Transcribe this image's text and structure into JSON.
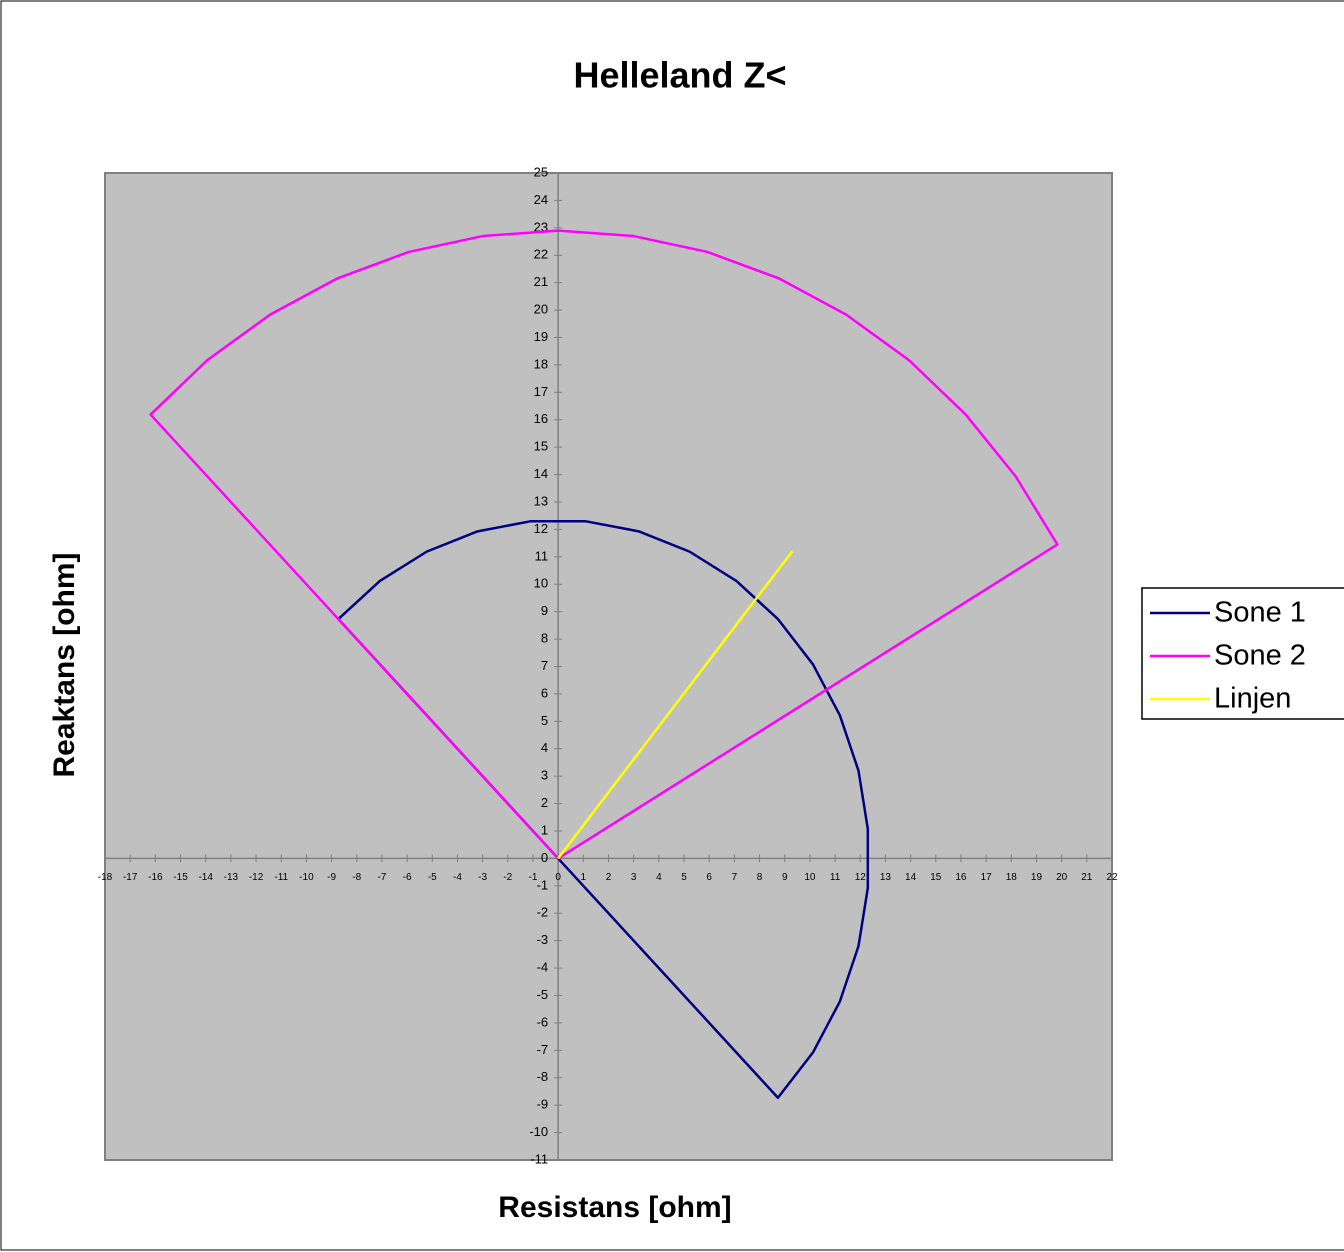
{
  "chart_data": {
    "type": "scatter",
    "title": "Helleland Z<",
    "x_label": "Resistans [ohm]",
    "y_label": "Reaktans [ohm]",
    "xlim": [
      -18,
      22
    ],
    "ylim": [
      -11,
      25
    ],
    "xticks": [
      -18,
      -17,
      -16,
      -15,
      -14,
      -13,
      -12,
      -11,
      -10,
      -9,
      -8,
      -7,
      -6,
      -5,
      -4,
      -3,
      -2,
      -1,
      0,
      1,
      2,
      3,
      4,
      5,
      6,
      7,
      8,
      9,
      10,
      11,
      12,
      13,
      14,
      15,
      16,
      17,
      18,
      19,
      20,
      21,
      22
    ],
    "yticks": [
      -11,
      -10,
      -9,
      -8,
      -7,
      -6,
      -5,
      -4,
      -3,
      -2,
      -1,
      0,
      1,
      2,
      3,
      4,
      5,
      6,
      7,
      8,
      9,
      10,
      11,
      12,
      13,
      14,
      15,
      16,
      17,
      18,
      19,
      20,
      21,
      22,
      23,
      24,
      25
    ],
    "legend": "right",
    "grid": false,
    "plot_background": "#c0c0c0",
    "series": [
      {
        "name": "Sone 1",
        "color": "#000080",
        "x": [
          0,
          -8.73,
          -7.08,
          -5.22,
          -3.2,
          -1.08,
          1.08,
          3.2,
          5.22,
          7.08,
          8.73,
          10.12,
          11.19,
          11.93,
          12.3,
          12.3,
          11.93,
          11.19,
          10.12,
          8.73,
          0
        ],
        "values": [
          0,
          8.73,
          10.12,
          11.19,
          11.93,
          12.3,
          12.3,
          11.93,
          11.19,
          10.12,
          8.73,
          7.08,
          5.22,
          3.2,
          1.08,
          -1.08,
          -3.2,
          -5.22,
          -7.08,
          -8.73,
          0
        ]
      },
      {
        "name": "Sone 2",
        "color": "#ff00ff",
        "x": [
          0,
          -16.19,
          -13.94,
          -11.45,
          -8.76,
          -5.93,
          -2.99,
          0,
          2.99,
          5.93,
          8.76,
          11.45,
          13.94,
          16.19,
          18.17,
          19.83,
          0
        ],
        "values": [
          0,
          16.19,
          18.17,
          19.83,
          21.16,
          22.12,
          22.7,
          22.9,
          22.7,
          22.12,
          21.16,
          19.83,
          18.17,
          16.19,
          13.94,
          11.45,
          0
        ]
      },
      {
        "name": "Linjen",
        "color": "#ffff00",
        "x": [
          0,
          9.3
        ],
        "values": [
          0,
          11.2
        ]
      }
    ]
  }
}
